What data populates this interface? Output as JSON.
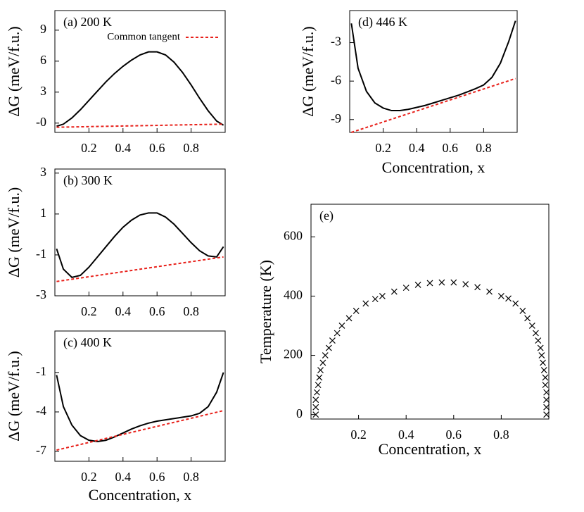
{
  "chart_data": [
    {
      "type": "line",
      "annotation": "(a) 200 K",
      "ylabel": "ΔG (meV/f.u.)",
      "xlim": [
        0,
        1
      ],
      "xticks": [
        0.2,
        0.4,
        0.6,
        0.8
      ],
      "ylim": [
        -0.9,
        10.9
      ],
      "yticks": [
        {
          "value": 0,
          "label": "-0"
        },
        3,
        6,
        9
      ],
      "legend": "upper right",
      "series": [
        {
          "color": "#000000",
          "style": "solid",
          "x": [
            0.01,
            0.05,
            0.1,
            0.15,
            0.2,
            0.25,
            0.3,
            0.35,
            0.4,
            0.45,
            0.5,
            0.55,
            0.6,
            0.65,
            0.7,
            0.75,
            0.8,
            0.85,
            0.9,
            0.95,
            0.99
          ],
          "values": [
            -0.3,
            -0.1,
            0.5,
            1.3,
            2.2,
            3.1,
            4.0,
            4.8,
            5.5,
            6.1,
            6.6,
            6.9,
            6.9,
            6.6,
            5.9,
            4.9,
            3.7,
            2.4,
            1.2,
            0.2,
            -0.2
          ]
        },
        {
          "name": "Common tangent",
          "color": "#e8201a",
          "style": "dashed",
          "x": [
            0.01,
            0.99
          ],
          "values": [
            -0.4,
            -0.1
          ]
        }
      ]
    },
    {
      "type": "line",
      "annotation": "(b) 300 K",
      "ylabel": "ΔG (meV/f.u.)",
      "xlim": [
        0,
        1
      ],
      "xticks": [
        0.2,
        0.4,
        0.6,
        0.8
      ],
      "ylim": [
        -3,
        3.2
      ],
      "yticks": [
        -3,
        -1,
        1,
        3
      ],
      "series": [
        {
          "color": "#000000",
          "style": "solid",
          "x": [
            0.01,
            0.05,
            0.1,
            0.15,
            0.2,
            0.25,
            0.3,
            0.35,
            0.4,
            0.45,
            0.5,
            0.55,
            0.6,
            0.65,
            0.7,
            0.75,
            0.8,
            0.85,
            0.9,
            0.95,
            0.99
          ],
          "values": [
            -0.7,
            -1.7,
            -2.1,
            -2.0,
            -1.6,
            -1.1,
            -0.6,
            -0.1,
            0.35,
            0.7,
            0.95,
            1.05,
            1.05,
            0.85,
            0.5,
            0.05,
            -0.4,
            -0.8,
            -1.05,
            -1.1,
            -0.6
          ]
        },
        {
          "color": "#e8201a",
          "style": "dashed",
          "x": [
            0.01,
            0.99
          ],
          "values": [
            -2.3,
            -1.1
          ]
        }
      ]
    },
    {
      "type": "line",
      "annotation": "(c) 400 K",
      "ylabel": "ΔG (meV/f.u.)",
      "xlabel": "Concentration, x",
      "xlim": [
        0,
        1
      ],
      "xticks": [
        0.2,
        0.4,
        0.6,
        0.8
      ],
      "ylim": [
        -7.75,
        2.15
      ],
      "yticks": [
        -7,
        -4,
        -1
      ],
      "series": [
        {
          "color": "#000000",
          "style": "solid",
          "x": [
            0.01,
            0.05,
            0.1,
            0.15,
            0.2,
            0.25,
            0.3,
            0.35,
            0.4,
            0.45,
            0.5,
            0.55,
            0.6,
            0.65,
            0.7,
            0.75,
            0.8,
            0.85,
            0.9,
            0.95,
            0.99
          ],
          "values": [
            -1.2,
            -3.6,
            -5.0,
            -5.8,
            -6.15,
            -6.25,
            -6.15,
            -5.9,
            -5.6,
            -5.3,
            -5.05,
            -4.85,
            -4.7,
            -4.6,
            -4.5,
            -4.4,
            -4.3,
            -4.1,
            -3.6,
            -2.5,
            -1.0
          ]
        },
        {
          "color": "#e8201a",
          "style": "dashed",
          "x": [
            0.01,
            0.99
          ],
          "values": [
            -6.9,
            -3.9
          ]
        }
      ]
    },
    {
      "type": "line",
      "annotation": "(d) 446 K",
      "ylabel": "ΔG (meV/f.u.)",
      "xlabel": "Concentration, x",
      "xlim": [
        0,
        1
      ],
      "xticks": [
        0.2,
        0.4,
        0.6,
        0.8
      ],
      "ylim": [
        -10,
        -0.5
      ],
      "yticks": [
        -9,
        -6,
        -3
      ],
      "series": [
        {
          "color": "#000000",
          "style": "solid",
          "x": [
            0.01,
            0.05,
            0.1,
            0.15,
            0.2,
            0.25,
            0.3,
            0.35,
            0.4,
            0.45,
            0.5,
            0.55,
            0.6,
            0.65,
            0.7,
            0.75,
            0.8,
            0.85,
            0.9,
            0.95,
            0.99
          ],
          "values": [
            -1.5,
            -5.0,
            -6.8,
            -7.7,
            -8.1,
            -8.3,
            -8.3,
            -8.2,
            -8.05,
            -7.9,
            -7.7,
            -7.5,
            -7.3,
            -7.1,
            -6.85,
            -6.6,
            -6.3,
            -5.7,
            -4.6,
            -2.9,
            -1.3
          ]
        },
        {
          "color": "#e8201a",
          "style": "dashed",
          "x": [
            0.01,
            0.99
          ],
          "values": [
            -10,
            -5.8
          ]
        }
      ]
    },
    {
      "type": "scatter",
      "annotation": "(e)",
      "ylabel": "Temperature (K)",
      "xlabel": "Concentration, x",
      "xlim": [
        0,
        1
      ],
      "xticks": [
        0.2,
        0.4,
        0.6,
        0.8
      ],
      "ylim": [
        -15,
        710
      ],
      "yticks": [
        0,
        200,
        400,
        600
      ],
      "marker": "x",
      "series": [
        {
          "color": "#000000",
          "x": [
            0.02,
            0.02,
            0.02,
            0.025,
            0.03,
            0.035,
            0.04,
            0.05,
            0.06,
            0.075,
            0.09,
            0.11,
            0.13,
            0.16,
            0.19,
            0.23,
            0.27,
            0.3,
            0.35,
            0.4,
            0.45,
            0.5,
            0.55,
            0.6,
            0.65,
            0.7,
            0.75,
            0.8,
            0.83,
            0.86,
            0.89,
            0.91,
            0.93,
            0.945,
            0.955,
            0.965,
            0.97,
            0.975,
            0.98,
            0.985,
            0.985,
            0.99,
            0.99,
            0.99,
            0.99
          ],
          "values": [
            0,
            25,
            50,
            75,
            100,
            125,
            150,
            175,
            200,
            225,
            250,
            275,
            300,
            325,
            350,
            375,
            390,
            400,
            415,
            428,
            438,
            444,
            446,
            446,
            440,
            430,
            415,
            400,
            392,
            375,
            350,
            325,
            300,
            275,
            250,
            225,
            200,
            175,
            150,
            125,
            100,
            75,
            50,
            25,
            0
          ]
        }
      ]
    }
  ]
}
